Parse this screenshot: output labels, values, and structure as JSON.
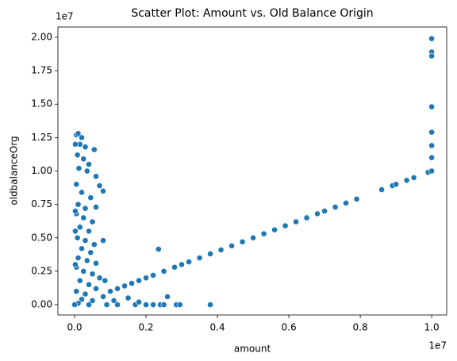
{
  "chart_data": {
    "type": "scatter",
    "title": "Scatter Plot: Amount vs. Old Balance Origin",
    "x_label": "amount",
    "y_label": "oldbalanceOrg",
    "x_offset_label": "1e7",
    "y_offset_label": "1e7",
    "color": "#1f77b4",
    "x": [
      50000.0,
      100000.0,
      200000.0,
      150000.0,
      300000.0,
      550000.0,
      80000.0,
      250000.0,
      400000.0,
      120000.0,
      350000.0,
      600000.0,
      700000.0,
      800000.0,
      50000.0,
      200000.0,
      450000.0,
      100000.0,
      300000.0,
      600000.0,
      50000.0,
      250000.0,
      500000.0,
      150000.0,
      400000.0,
      80000.0,
      300000.0,
      550000.0,
      800000.0,
      200000.0,
      450000.0,
      100000.0,
      350000.0,
      600000.0,
      50000.0,
      250000.0,
      500000.0,
      700000.0,
      850000.0,
      150000.0,
      400000.0,
      600000.0,
      50000.0,
      300000.0,
      800000.0,
      200000.0,
      500000.0,
      100000.0,
      0.0,
      400000.0,
      900000.0,
      1200000.0,
      1500000.0,
      1700000.0,
      2000000.0,
      2200000.0,
      2400000.0,
      2500000.0,
      2600000.0,
      2850000.0,
      2950000.0,
      3800000.0,
      1800000.0,
      1100000.0,
      20000.0,
      20000.0,
      20000.0,
      20000.0,
      1000000.0,
      1200000.0,
      1400000.0,
      1600000.0,
      1800000.0,
      2000000.0,
      2200000.0,
      2500000.0,
      2800000.0,
      3000000.0,
      3200000.0,
      3500000.0,
      3800000.0,
      4100000.0,
      4400000.0,
      4700000.0,
      5000000.0,
      5300000.0,
      5600000.0,
      5900000.0,
      6200000.0,
      6500000.0,
      6800000.0,
      7000000.0,
      7300000.0,
      7600000.0,
      7900000.0,
      8600000.0,
      8900000.0,
      9000000.0,
      9300000.0,
      9500000.0,
      9900000.0,
      2350000.0,
      10000000.0,
      10000000.0,
      10000000.0,
      10000000.0,
      10000000.0,
      10000000.0,
      10000000.0,
      10000000.0
    ],
    "values": [
      12700000.0,
      12800000.0,
      12500000.0,
      12000000.0,
      11800000.0,
      11600000.0,
      11200000.0,
      10900000.0,
      10500000.0,
      10200000.0,
      10000000.0,
      9600000.0,
      8900000.0,
      8500000.0,
      9000000.0,
      8400000.0,
      8000000.0,
      7500000.0,
      7200000.0,
      7300000.0,
      6800000.0,
      6500000.0,
      6200000.0,
      5800000.0,
      5500000.0,
      5000000.0,
      4800000.0,
      4500000.0,
      4800000.0,
      4200000.0,
      3900000.0,
      3500000.0,
      3300000.0,
      3100000.0,
      2800000.0,
      2500000.0,
      2300000.0,
      2000000.0,
      1800000.0,
      1800000.0,
      1500000.0,
      1200000.0,
      1000000.0,
      800000.0,
      600000.0,
      400000.0,
      300000.0,
      100000.0,
      0.0,
      0.0,
      0.0,
      0.0,
      500000.0,
      0.0,
      0.0,
      0.0,
      0.0,
      0.0,
      600000.0,
      0.0,
      0.0,
      0.0,
      200000.0,
      300000.0,
      12000000.0,
      7000000.0,
      3000000.0,
      5500000.0,
      1000000.0,
      1200000.0,
      1400000.0,
      1600000.0,
      1800000.0,
      2000000.0,
      2200000.0,
      2500000.0,
      2800000.0,
      3000000.0,
      3200000.0,
      3500000.0,
      3800000.0,
      4100000.0,
      4400000.0,
      4700000.0,
      5000000.0,
      5300000.0,
      5600000.0,
      5900000.0,
      6200000.0,
      6500000.0,
      6800000.0,
      7000000.0,
      7300000.0,
      7600000.0,
      7900000.0,
      8600000.0,
      8900000.0,
      9000000.0,
      9300000.0,
      9500000.0,
      9900000.0,
      4150000.0,
      19900000.0,
      18900000.0,
      18600000.0,
      14800000.0,
      12900000.0,
      11900000.0,
      11000000.0,
      10000000.0
    ],
    "xlim": [
      -467000.0,
      10420000.0
    ],
    "ylim": [
      -770000.0,
      20770000.0
    ],
    "xticks": [
      {
        "value": 0,
        "label": "0.0"
      },
      {
        "value": 2000000,
        "label": "0.2"
      },
      {
        "value": 4000000,
        "label": "0.4"
      },
      {
        "value": 6000000,
        "label": "0.6"
      },
      {
        "value": 8000000,
        "label": "0.8"
      },
      {
        "value": 10000000,
        "label": "1.0"
      }
    ],
    "yticks": [
      {
        "value": 0,
        "label": "0.00"
      },
      {
        "value": 2500000,
        "label": "0.25"
      },
      {
        "value": 5000000,
        "label": "0.50"
      },
      {
        "value": 7500000,
        "label": "0.75"
      },
      {
        "value": 10000000,
        "label": "1.00"
      },
      {
        "value": 12500000,
        "label": "1.25"
      },
      {
        "value": 15000000,
        "label": "1.50"
      },
      {
        "value": 17500000,
        "label": "1.75"
      },
      {
        "value": 20000000,
        "label": "2.00"
      }
    ],
    "grid": false
  }
}
